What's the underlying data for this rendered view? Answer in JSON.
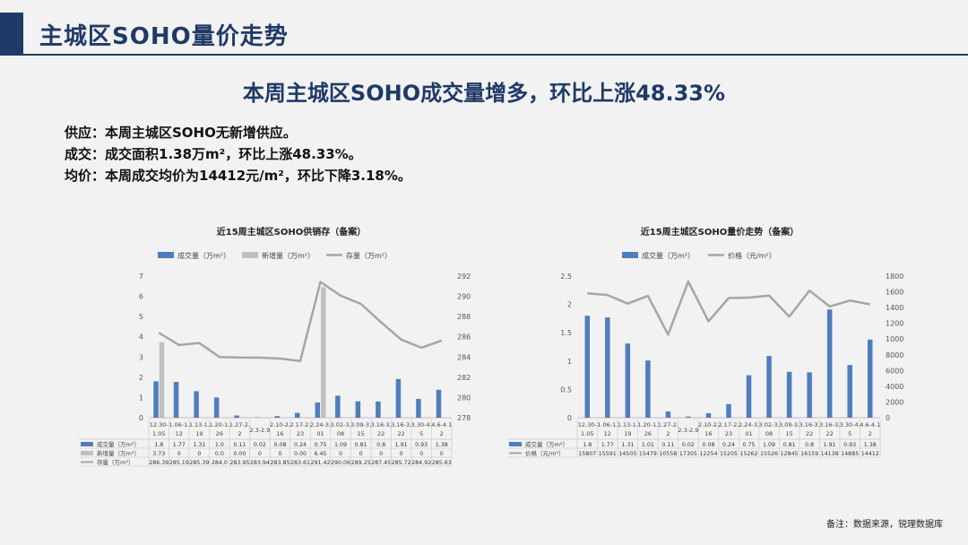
{
  "page": {
    "title": "主城区SOHO量价走势",
    "headline": "本周主城区SOHO成交量增多，环比上涨48.33%",
    "summary": [
      "供应：本周主城区SOHO无新增供应。",
      "成交：成交面积1.38万m²，环比上涨48.33%。",
      "均价：本周成交均价为14412元/m²，环比下降3.18%。"
    ],
    "footnote": "备注：数据来源，锐理数据库"
  },
  "chart_data": [
    {
      "type": "bar",
      "title": "近15周主城区SOHO供销存（备案）",
      "categories": [
        "12.30-1.05",
        "1.06-1.12",
        "1.13-1.19",
        "1.20-1.26",
        "1.27-2.2",
        "2.3-2.9",
        "2.10-2.16",
        "2.17-2.23",
        "2.24-3.01",
        "3.02-3.08",
        "3.09-3.15",
        "3.16-3.22",
        "3.16-3.22",
        "3.30-4.5",
        "4.6-4.12"
      ],
      "category_lines": [
        [
          "12.30-",
          "1.05"
        ],
        [
          "1.06-1.",
          "12"
        ],
        [
          "1.13-1.",
          "19"
        ],
        [
          "1.20-1.",
          "26"
        ],
        [
          "1.27-2.",
          "2"
        ],
        [
          "2.3-2.9",
          ""
        ],
        [
          "2.10-2.",
          "16"
        ],
        [
          "2.17-2.",
          "23"
        ],
        [
          "2.24-3.",
          "01"
        ],
        [
          "3.02-3.",
          "08"
        ],
        [
          "3.09-3.",
          "15"
        ],
        [
          "3.16-3.",
          "22"
        ],
        [
          "3.16-3.",
          "22"
        ],
        [
          "3.30-4.",
          "5"
        ],
        [
          "4.6-4.1",
          "2"
        ]
      ],
      "series": [
        {
          "name": "成交量（万m²）",
          "kind": "bar",
          "axis": "left",
          "color": "#4f7ebd",
          "values": [
            1.8,
            1.77,
            1.31,
            1.0,
            0.11,
            0.02,
            0.08,
            0.24,
            0.75,
            1.09,
            0.81,
            0.8,
            1.91,
            0.93,
            1.38
          ],
          "labels": [
            "1.8",
            "1.77",
            "1.31",
            "1.0",
            "0.11",
            "0.02",
            "0.08",
            "0.24",
            "0.75",
            "1.09",
            "0.81",
            "0.8",
            "1.91",
            "0.93",
            "1.38"
          ]
        },
        {
          "name": "新增量（万m²）",
          "kind": "bar",
          "axis": "left",
          "color": "#c0c0c0",
          "values": [
            3.73,
            0,
            0,
            0,
            0,
            0,
            0,
            0,
            6.45,
            0,
            0,
            0,
            0,
            0,
            0
          ],
          "labels": [
            "3.73",
            "0",
            "0",
            "0.0",
            "0.00",
            "0",
            "0",
            "0.00",
            "6.45",
            "0",
            "0",
            "0",
            "0",
            "0",
            "0"
          ]
        },
        {
          "name": "存量（万m²）",
          "kind": "line",
          "axis": "right",
          "color": "#a6a6a6",
          "values": [
            286.39,
            285.19,
            285.39,
            284.0,
            283.95,
            283.94,
            283.85,
            283.61,
            291.42,
            290.06,
            289.25,
            287.45,
            285.72,
            284.92,
            285.63
          ],
          "labels": [
            "286.39",
            "285.19",
            "285.39",
            "284.0",
            "283.95",
            "283.94",
            "283.85",
            "283.61",
            "291.42",
            "290.06",
            "289.25",
            "287.45",
            "285.72",
            "284.92",
            "285.63"
          ]
        }
      ],
      "table_labels": [
        "成交量（万m²）",
        "新增量（万m²）",
        "存量（万m²）"
      ],
      "ylim_left": [
        0,
        7
      ],
      "yticks_left": [
        "0",
        "1",
        "2",
        "3",
        "4",
        "5",
        "6",
        "7"
      ],
      "ylim_right": [
        278,
        292
      ],
      "yticks_right": [
        "278",
        "280",
        "282",
        "284",
        "286",
        "288",
        "290",
        "292"
      ],
      "legend": "top",
      "grid": false
    },
    {
      "type": "bar",
      "title": "近15周主城区SOHO量价走势（备案）",
      "categories": [
        "12.30-1.05",
        "1.06-1.12",
        "1.13-1.19",
        "1.20-1.26",
        "1.27-2.2",
        "2.3-2.9",
        "2.10-2.16",
        "2.17-2.23",
        "2.24-3.01",
        "3.02-3.08",
        "3.09-3.15",
        "3.16-3.22",
        "3.16-3.22",
        "3.30-4.5",
        "4.6-4.12"
      ],
      "category_lines": [
        [
          "12.30-",
          "1.05"
        ],
        [
          "1.06-1.",
          "12"
        ],
        [
          "1.13-1.",
          "19"
        ],
        [
          "1.20-1.",
          "26"
        ],
        [
          "1.27-2.",
          "2"
        ],
        [
          "2.3-2.9",
          ""
        ],
        [
          "2.10-2.",
          "16"
        ],
        [
          "2.17-2.",
          "23"
        ],
        [
          "2.24-3.",
          "01"
        ],
        [
          "3.02-3.",
          "08"
        ],
        [
          "3.09-3.",
          "15"
        ],
        [
          "3.16-3.",
          "22"
        ],
        [
          "3.16-3.",
          "22"
        ],
        [
          "3.30-4.",
          "5"
        ],
        [
          "4.6-4.1",
          "2"
        ]
      ],
      "series": [
        {
          "name": "成交量（万m²）",
          "kind": "bar",
          "axis": "left",
          "color": "#4f7ebd",
          "values": [
            1.8,
            1.77,
            1.31,
            1.01,
            0.11,
            0.02,
            0.08,
            0.24,
            0.75,
            1.09,
            0.81,
            0.8,
            1.91,
            0.93,
            1.38
          ],
          "labels": [
            "1.8",
            "1.77",
            "1.31",
            "1.01",
            "0.11",
            "0.02",
            "0.08",
            "0.24",
            "0.75",
            "1.09",
            "0.81",
            "0.8",
            "1.91",
            "0.93",
            "1.38"
          ]
        },
        {
          "name": "价格（元/m²）",
          "kind": "line",
          "axis": "right",
          "color": "#a6a6a6",
          "values": [
            15807,
            15591,
            14505,
            15479,
            10558,
            17305,
            12254,
            15205,
            15262,
            15526,
            12845,
            16159,
            14138,
            14885,
            14412
          ],
          "labels": [
            "15807",
            "15591",
            "14505",
            "15479",
            "10558",
            "17305",
            "12254",
            "15205",
            "15262",
            "15526",
            "12845",
            "16159",
            "14138",
            "14885",
            "14412"
          ]
        }
      ],
      "table_labels": [
        "成交量（万m²）",
        "价格（元/m²）"
      ],
      "ylim_left": [
        0,
        2.5
      ],
      "yticks_left": [
        "0",
        "0.5",
        "1",
        "1.5",
        "2",
        "2.5"
      ],
      "ylim_right": [
        0,
        18000
      ],
      "yticks_right": [
        "0",
        "2000",
        "4000",
        "6000",
        "8000",
        "10000",
        "12000",
        "14000",
        "16000",
        "18000"
      ],
      "legend": "top",
      "grid": false
    }
  ]
}
